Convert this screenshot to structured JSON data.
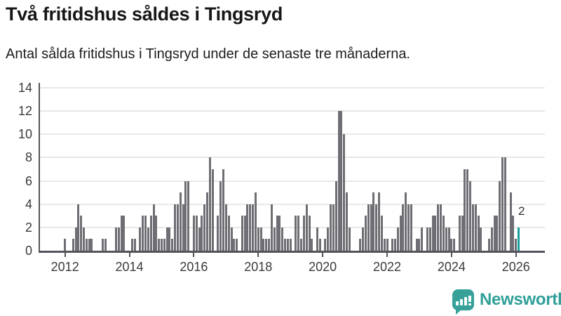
{
  "header": {
    "title": "Två fritidshus såldes i Tingsryd",
    "subtitle": "Antal sålda fritidshus i Tingsryd under de senaste tre månaderna."
  },
  "chart_data": {
    "type": "bar",
    "title": "Två fritidshus såldes i Tingsryd",
    "subtitle": "Antal sålda fritidshus i Tingsryd under de senaste tre månaderna.",
    "xlabel": "",
    "ylabel": "",
    "ylim": [
      0,
      14
    ],
    "grid": true,
    "y_ticks": [
      0,
      2,
      4,
      6,
      8,
      10,
      12,
      14
    ],
    "x_tick_labels": [
      "2012",
      "2014",
      "2016",
      "2018",
      "2020",
      "2022",
      "2024",
      "2026"
    ],
    "frequency": "monthly",
    "values_by_year": [
      {
        "year": 2011,
        "from_month": 5,
        "values": [
          0,
          0,
          0,
          0,
          0,
          0,
          0,
          0
        ]
      },
      {
        "year": 2012,
        "from_month": 1,
        "values": [
          1,
          0,
          0,
          1,
          2,
          4,
          3,
          2,
          1,
          1,
          1,
          0
        ]
      },
      {
        "year": 2013,
        "from_month": 1,
        "values": [
          0,
          0,
          1,
          1,
          0,
          0,
          0,
          2,
          2,
          3,
          3,
          0
        ]
      },
      {
        "year": 2014,
        "from_month": 1,
        "values": [
          0,
          1,
          1,
          0,
          2,
          3,
          3,
          2,
          3,
          4,
          3,
          1
        ]
      },
      {
        "year": 2015,
        "from_month": 1,
        "values": [
          1,
          1,
          2,
          2,
          1,
          4,
          4,
          5,
          4,
          6,
          6,
          0
        ]
      },
      {
        "year": 2016,
        "from_month": 1,
        "values": [
          3,
          3,
          2,
          3,
          4,
          5,
          8,
          7,
          0,
          3,
          6,
          7
        ]
      },
      {
        "year": 2017,
        "from_month": 1,
        "values": [
          4,
          3,
          2,
          1,
          1,
          0,
          3,
          3,
          4,
          4,
          4,
          5
        ]
      },
      {
        "year": 2018,
        "from_month": 1,
        "values": [
          2,
          2,
          1,
          1,
          1,
          4,
          2,
          3,
          3,
          2,
          1,
          1
        ]
      },
      {
        "year": 2019,
        "from_month": 1,
        "values": [
          1,
          0,
          3,
          3,
          1,
          3,
          4,
          3,
          1,
          0,
          2,
          1
        ]
      },
      {
        "year": 2020,
        "from_month": 1,
        "values": [
          0,
          1,
          2,
          4,
          4,
          6,
          12,
          12,
          10,
          5,
          2,
          0
        ]
      },
      {
        "year": 2021,
        "from_month": 1,
        "values": [
          0,
          0,
          1,
          2,
          3,
          4,
          4,
          5,
          4,
          5,
          3,
          1
        ]
      },
      {
        "year": 2022,
        "from_month": 1,
        "values": [
          1,
          0,
          1,
          1,
          2,
          3,
          4,
          5,
          4,
          4,
          0,
          1
        ]
      },
      {
        "year": 2023,
        "from_month": 1,
        "values": [
          1,
          2,
          0,
          2,
          2,
          3,
          3,
          4,
          4,
          3,
          2,
          2
        ]
      },
      {
        "year": 2024,
        "from_month": 1,
        "values": [
          1,
          1,
          0,
          3,
          3,
          7,
          7,
          6,
          4,
          4,
          3,
          2
        ]
      },
      {
        "year": 2025,
        "from_month": 1,
        "values": [
          0,
          0,
          1,
          2,
          3,
          3,
          6,
          8,
          8,
          0,
          5,
          3
        ]
      },
      {
        "year": 2026,
        "from_month": 1,
        "values": [
          1,
          2
        ]
      }
    ],
    "last_point": {
      "month": "2026-02",
      "value": 2,
      "label": "2",
      "highlighted": true
    },
    "legend": null,
    "colors": {
      "bar": "#6e6e74",
      "highlight": "#19a09c",
      "grid": "#e8e8e8",
      "axis": "#54535a"
    }
  },
  "footer": {
    "brand": "Newsworthy"
  }
}
